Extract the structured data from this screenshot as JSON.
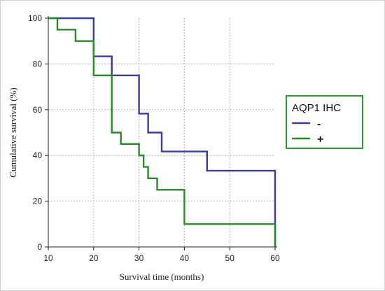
{
  "chart_data": {
    "type": "line",
    "xlabel": "Survival time (months)",
    "ylabel": "Cumulative survival (%)",
    "xlim": [
      10,
      60
    ],
    "ylim": [
      0,
      100
    ],
    "xticks": [
      10,
      20,
      30,
      40,
      50,
      60
    ],
    "yticks": [
      0,
      20,
      40,
      60,
      80,
      100
    ],
    "grid": true,
    "legend": {
      "title": "AQP1 IHC",
      "placement": "right",
      "color": "#2e9a2e"
    },
    "series": [
      {
        "name": "-",
        "color": "#3b3b9a",
        "step": true,
        "points": [
          [
            10,
            100
          ],
          [
            20,
            100
          ],
          [
            20,
            83.3
          ],
          [
            24,
            83.3
          ],
          [
            24,
            75
          ],
          [
            30,
            75
          ],
          [
            30,
            58.3
          ],
          [
            32,
            58.3
          ],
          [
            32,
            50
          ],
          [
            35,
            50
          ],
          [
            35,
            41.7
          ],
          [
            45,
            41.7
          ],
          [
            45,
            33.3
          ],
          [
            60,
            33.3
          ],
          [
            60,
            0
          ]
        ]
      },
      {
        "name": "+",
        "color": "#2a8a2a",
        "step": true,
        "points": [
          [
            10,
            100
          ],
          [
            12,
            100
          ],
          [
            12,
            95
          ],
          [
            16,
            95
          ],
          [
            16,
            90
          ],
          [
            20,
            90
          ],
          [
            20,
            75
          ],
          [
            24,
            75
          ],
          [
            24,
            50
          ],
          [
            26,
            50
          ],
          [
            26,
            45
          ],
          [
            30,
            45
          ],
          [
            30,
            40
          ],
          [
            31,
            40
          ],
          [
            31,
            35
          ],
          [
            32,
            35
          ],
          [
            32,
            30
          ],
          [
            34,
            30
          ],
          [
            34,
            25
          ],
          [
            40,
            25
          ],
          [
            40,
            10
          ],
          [
            60,
            10
          ],
          [
            60,
            0
          ]
        ]
      }
    ]
  }
}
